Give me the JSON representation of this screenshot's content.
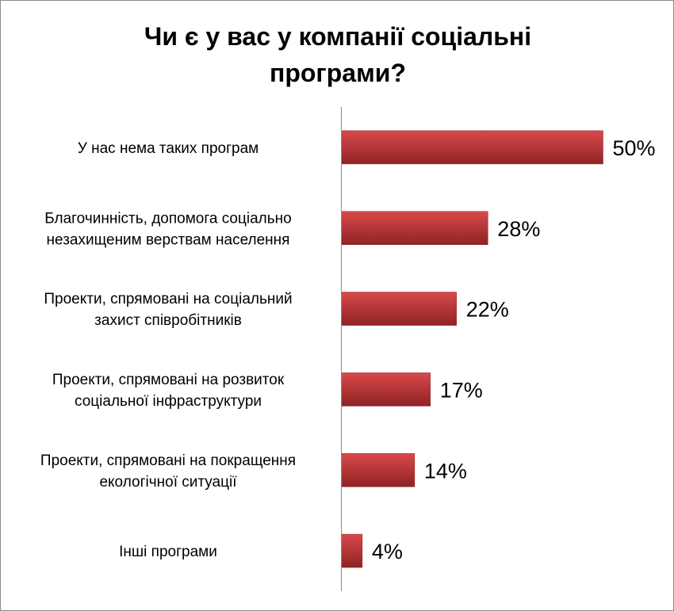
{
  "chart_data": {
    "type": "bar",
    "orientation": "horizontal",
    "title": "Чи є у вас у компанії соціальні програми?",
    "categories": [
      [
        "У нас нема таких програм"
      ],
      [
        "Благочинність, допомога соціально",
        "незахищеним верствам населення"
      ],
      [
        "Проекти, спрямовані на соціальний",
        "захист співробітників"
      ],
      [
        "Проекти, спрямовані на розвиток",
        "соціальної інфраструктури"
      ],
      [
        "Проекти, спрямовані на покращення",
        "екологічної ситуації"
      ],
      [
        "Інші програми"
      ]
    ],
    "values": [
      50,
      28,
      22,
      17,
      14,
      4
    ],
    "value_labels": [
      "50%",
      "28%",
      "22%",
      "17%",
      "14%",
      "4%"
    ],
    "unit": "%",
    "xlim": [
      0,
      50
    ],
    "grid": false,
    "legend": "none",
    "bar_color": "#c0393b",
    "bar_color_light": "#d9494b",
    "bar_color_dark": "#8f2325"
  }
}
